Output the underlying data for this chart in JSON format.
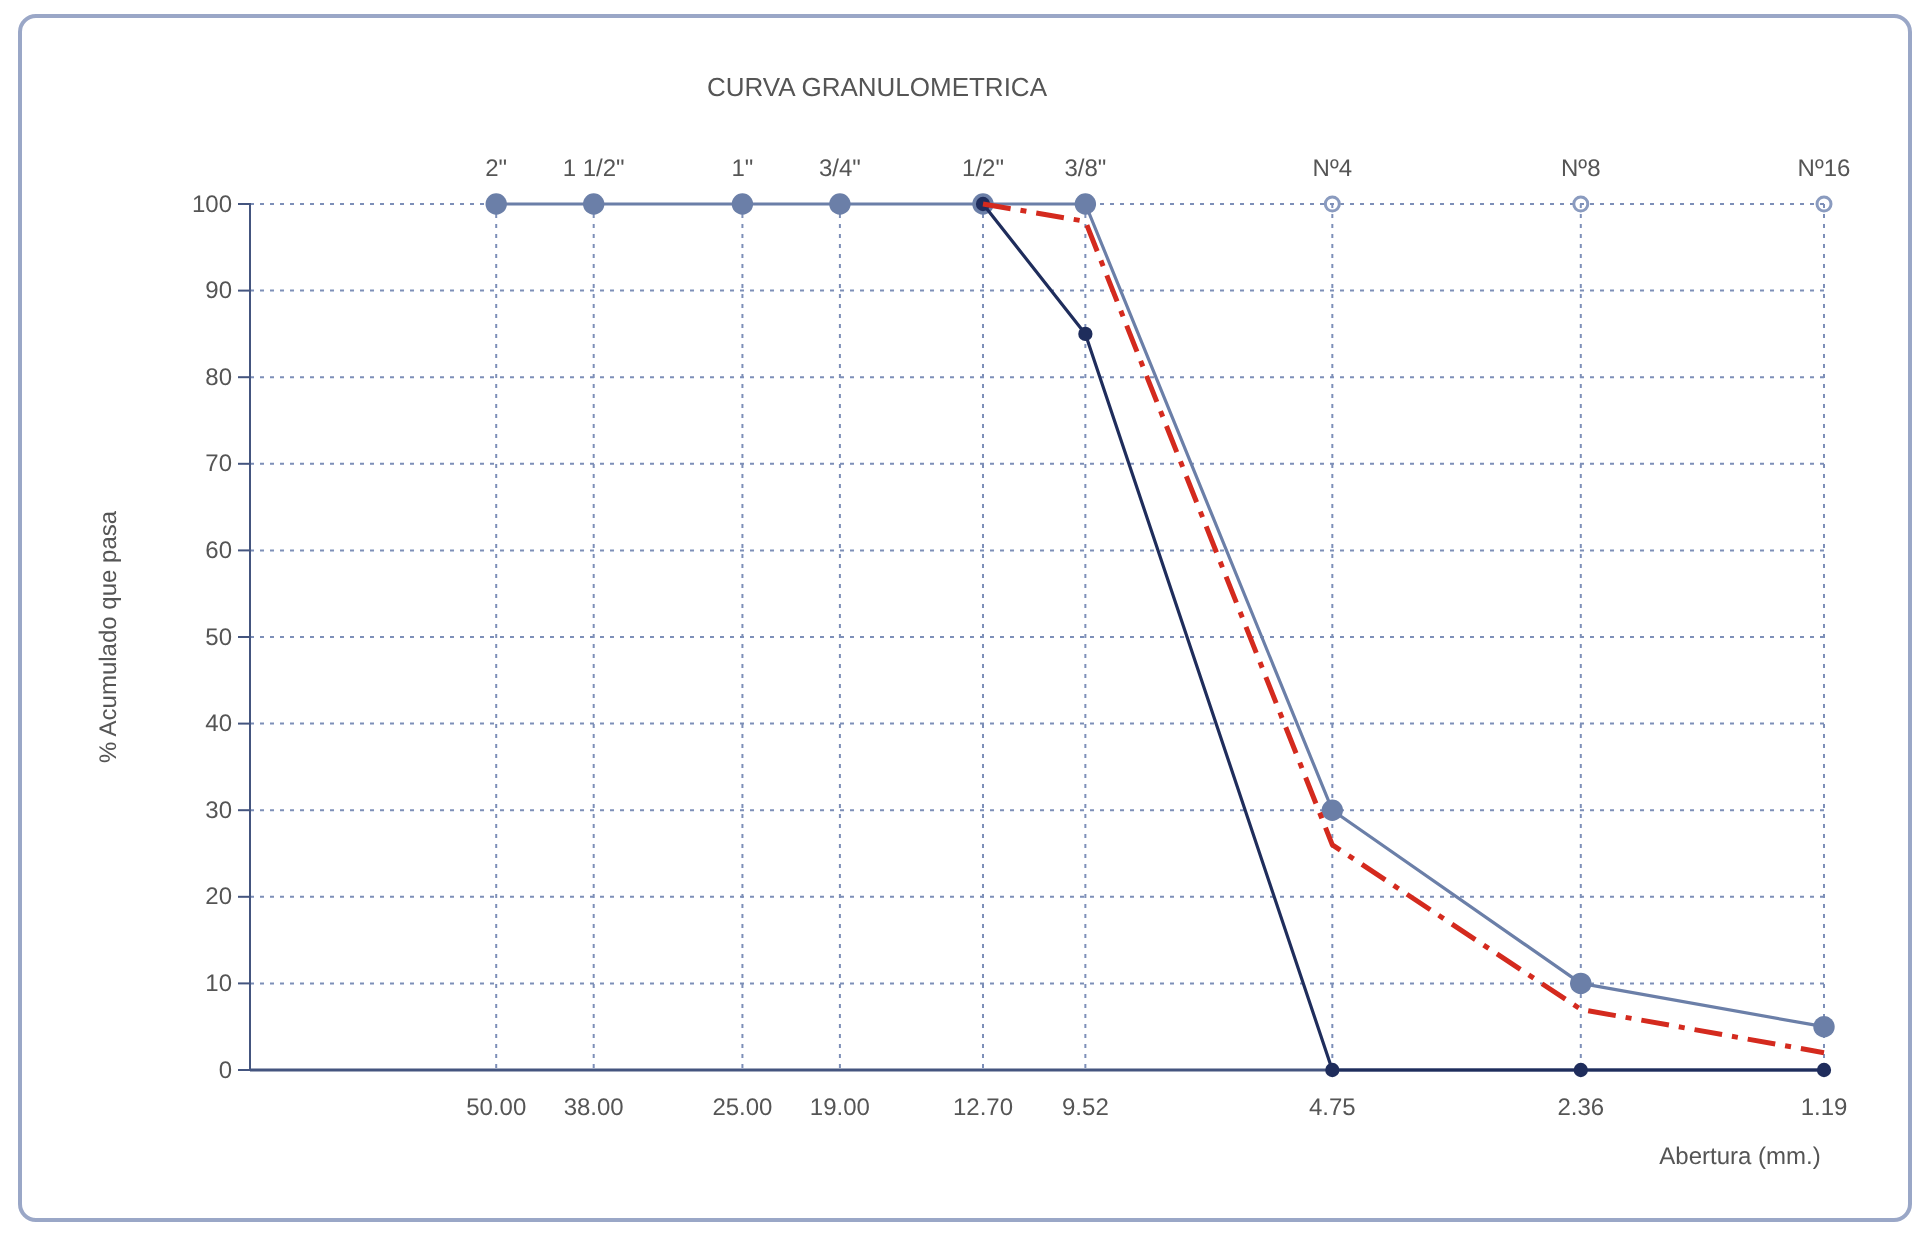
{
  "chart_data": {
    "type": "line",
    "title": "CURVA GRANULOMETRICA",
    "xlabel": "Abertura (mm.)",
    "ylabel": "% Acumulado que pasa",
    "log": "x",
    "xlim": [
      100,
      1.19
    ],
    "ylim": [
      0,
      100
    ],
    "xticks": [
      {
        "value": 50,
        "label": "50.00"
      },
      {
        "value": 38,
        "label": "38.00"
      },
      {
        "value": 25,
        "label": "25.00"
      },
      {
        "value": 19,
        "label": "19.00"
      },
      {
        "value": 12.7,
        "label": "12.70"
      },
      {
        "value": 9.52,
        "label": "9.52"
      },
      4.75,
      2.36,
      1.19
    ],
    "annotations": [
      {
        "text": "2\"",
        "x": 50,
        "y": 100
      },
      {
        "text": "1 1/2\"",
        "x": 38,
        "y": 100
      },
      {
        "text": "1\"",
        "x": 25,
        "y": 100
      },
      {
        "text": "3/4\"",
        "x": 19,
        "y": 100
      },
      {
        "text": "1/2\"",
        "x": 12.7,
        "y": 100
      },
      {
        "text": "3/8\"",
        "x": 9.52,
        "y": 100
      },
      {
        "text": "Nº4",
        "x": 4.75,
        "y": 100
      },
      {
        "text": "Nº8",
        "x": 2.36,
        "y": 100
      },
      {
        "text": "Nº16",
        "x": 1.19,
        "y": 100
      }
    ],
    "yticks": [
      0,
      10,
      20,
      30,
      40,
      50,
      60,
      70,
      80,
      90,
      100
    ],
    "grid": true,
    "marker": "circle",
    "series": [
      {
        "color": "#6b7fa8",
        "x": [
          50,
          38,
          25,
          19,
          12.7,
          9.52,
          4.75,
          2.36,
          1.19
        ],
        "values": [
          100,
          100,
          100,
          100,
          100,
          100,
          30,
          10,
          5
        ],
        "line_style": "solid"
      },
      {
        "color": "#1f2d5c",
        "x": [
          12.7,
          9.52,
          4.75,
          2.36,
          1.19
        ],
        "values": [
          100,
          85,
          0,
          0,
          0
        ],
        "line_style": "solid"
      },
      {
        "type": "scatter",
        "color": "#8a9bbf",
        "x": [
          4.75,
          2.36,
          1.19
        ],
        "values": [
          100,
          100,
          100
        ]
      },
      {
        "color": "#d42a1e",
        "x": [
          12.7,
          9.52,
          4.75,
          2.36,
          1.19
        ],
        "values": [
          100,
          98,
          26,
          7,
          2
        ],
        "line_style": "dashed",
        "marker": "none"
      }
    ]
  }
}
